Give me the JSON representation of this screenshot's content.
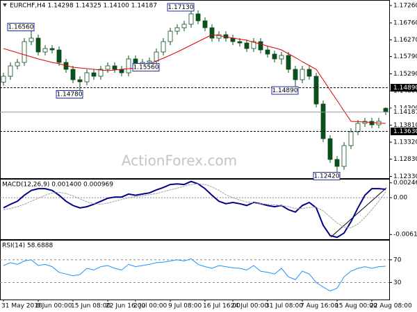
{
  "chart_data": [
    {
      "type": "candlestick",
      "title": "EURCHF,H4 1.14298 1.14325 1.14100 1.14187",
      "watermark": "ActionForex.com",
      "categories": [
        "31 May 2018",
        null,
        null,
        null,
        null,
        "8 Jun 00:00",
        null,
        null,
        null,
        null,
        "15 Jun 08:00",
        null,
        null,
        null,
        null,
        "22 Jun 16:00",
        null,
        null,
        null,
        "2 Jul 00:00",
        null,
        null,
        null,
        null,
        "9 Jul 08:00",
        null,
        null,
        null,
        null,
        "16 Jul 16:00",
        null,
        null,
        null,
        "24 Jul 00:00",
        null,
        null,
        null,
        null,
        "31 Jul 08:00",
        null,
        null,
        null,
        null,
        "7 Aug 16:00",
        null,
        null,
        null,
        null,
        "15 Aug 00:00",
        null,
        null,
        null,
        null,
        "22 Aug 08:00",
        null,
        null
      ],
      "open": [
        1.1505,
        1.1522,
        1.1552,
        1.1562,
        1.1622,
        1.1632,
        1.1592,
        1.1602,
        1.1598,
        1.1562,
        1.1542,
        1.1512,
        1.1506,
        1.1532,
        1.1522,
        1.1542,
        1.1552,
        1.1542,
        1.1532,
        1.1572,
        1.1552,
        1.1562,
        1.1566,
        1.1592,
        1.1622,
        1.1652,
        1.1662,
        1.1672,
        1.1702,
        1.1682,
        1.1662,
        1.1632,
        1.1642,
        1.1632,
        1.1622,
        1.1618,
        1.1602,
        1.1622,
        1.1598,
        1.1586,
        1.1572,
        1.1582,
        1.1542,
        1.1512,
        1.1542,
        1.1522,
        1.1442,
        1.1342,
        1.1282,
        1.1262,
        1.1322,
        1.1362,
        1.1386,
        1.1392,
        1.1382,
        1.14298
      ],
      "high": [
        1.1532,
        1.1562,
        1.1572,
        1.1632,
        1.1656,
        1.1642,
        1.1612,
        1.1612,
        1.1608,
        1.1572,
        1.1552,
        1.1522,
        1.1542,
        1.1542,
        1.1552,
        1.1562,
        1.1562,
        1.1552,
        1.1582,
        1.1582,
        1.1572,
        1.1576,
        1.1602,
        1.1632,
        1.1662,
        1.1672,
        1.1682,
        1.1713,
        1.1712,
        1.1692,
        1.1672,
        1.1652,
        1.1652,
        1.1642,
        1.1632,
        1.1628,
        1.1632,
        1.1632,
        1.1608,
        1.1596,
        1.1592,
        1.1592,
        1.1552,
        1.1552,
        1.1552,
        1.1532,
        1.1452,
        1.1352,
        1.1292,
        1.1332,
        1.1372,
        1.1396,
        1.1402,
        1.1402,
        1.1402,
        1.14325
      ],
      "low": [
        1.1495,
        1.1512,
        1.1542,
        1.1552,
        1.1612,
        1.1582,
        1.1582,
        1.1588,
        1.1552,
        1.1532,
        1.1502,
        1.1478,
        1.1496,
        1.1512,
        1.1512,
        1.1532,
        1.1532,
        1.1522,
        1.1522,
        1.1542,
        1.1542,
        1.1552,
        1.1556,
        1.1582,
        1.1612,
        1.1642,
        1.1652,
        1.1662,
        1.1672,
        1.1652,
        1.1622,
        1.1622,
        1.1622,
        1.1612,
        1.1608,
        1.1592,
        1.1592,
        1.1588,
        1.1576,
        1.1562,
        1.1556,
        1.1532,
        1.1489,
        1.1502,
        1.1512,
        1.1432,
        1.1332,
        1.1272,
        1.1242,
        1.1252,
        1.1312,
        1.1352,
        1.1376,
        1.1372,
        1.1372,
        1.141
      ],
      "close": [
        1.1522,
        1.1552,
        1.1562,
        1.1622,
        1.1632,
        1.1592,
        1.1602,
        1.1598,
        1.1562,
        1.1542,
        1.1512,
        1.1506,
        1.1532,
        1.1522,
        1.1542,
        1.1552,
        1.1542,
        1.1532,
        1.1572,
        1.1552,
        1.1562,
        1.1566,
        1.1592,
        1.1622,
        1.1652,
        1.1662,
        1.1672,
        1.1702,
        1.1682,
        1.1662,
        1.1632,
        1.1642,
        1.1632,
        1.1622,
        1.1618,
        1.1602,
        1.1622,
        1.1598,
        1.1586,
        1.1572,
        1.1582,
        1.1542,
        1.1512,
        1.1542,
        1.1522,
        1.1442,
        1.1342,
        1.1282,
        1.1262,
        1.1322,
        1.1362,
        1.1386,
        1.1392,
        1.1382,
        1.1392,
        1.14187
      ],
      "candle_color": "#0b4f1c",
      "up_fill": "#ffffff",
      "series": [
        {
          "color": "#e00000",
          "values": [
            1.1602,
            1.1596,
            1.159,
            1.1584,
            1.1578,
            1.1572,
            1.1567,
            1.1562,
            1.1558,
            1.1553,
            1.1548,
            1.1546,
            1.1544,
            1.1542,
            1.154,
            1.1538,
            1.154,
            1.1542,
            1.1544,
            1.1546,
            1.1548,
            1.1557,
            1.1566,
            1.1574,
            1.1583,
            1.1592,
            1.1602,
            1.1612,
            1.1622,
            1.1632,
            1.1642,
            1.1639,
            1.1636,
            1.1632,
            1.1629,
            1.1626,
            1.162,
            1.1615,
            1.1609,
            1.1604,
            1.1598,
            1.1587,
            1.1576,
            1.1564,
            1.1553,
            1.1542,
            1.1512,
            1.1482,
            1.1452,
            1.1422,
            1.1392,
            1.1391,
            1.139,
            1.1389,
            1.1387,
            1.1386
          ]
        }
      ],
      "ylim": [
        1.1228,
        1.1738
      ],
      "yticks": [
        {
          "value": 1.1726,
          "label": "1.17260"
        },
        {
          "value": 1.1676,
          "label": "1.16760"
        },
        {
          "value": 1.1627,
          "label": "1.16270"
        },
        {
          "value": 1.1579,
          "label": "1.15790"
        },
        {
          "value": 1.1529,
          "label": "1.15290"
        },
        {
          "value": 1.148,
          "label": "1.14800"
        },
        {
          "value": 1.143,
          "label": "1.14300"
        },
        {
          "value": 1.1381,
          "label": "1.13810"
        },
        {
          "value": 1.1332,
          "label": "1.13320"
        },
        {
          "value": 1.1283,
          "label": "1.12830"
        },
        {
          "value": 1.1233,
          "label": "1.12330"
        }
      ],
      "levels": [
        {
          "value": 1.1489,
          "label": "1.14890",
          "style": "dashed"
        },
        {
          "value": 1.14187,
          "label": "1.14187",
          "style": "current"
        },
        {
          "value": 1.1363,
          "label": "1.13630",
          "style": "dashed"
        }
      ],
      "annotations": [
        {
          "value": 1.1656,
          "label": "1.16560"
        },
        {
          "value": 1.1478,
          "label": "1.14780"
        },
        {
          "value": 1.1713,
          "label": "1.17130"
        },
        {
          "value": 1.1556,
          "label": "1.15560"
        },
        {
          "value": 1.1489,
          "label": "1.14890"
        },
        {
          "value": 1.1242,
          "label": "1.12420"
        }
      ]
    },
    {
      "type": "macd",
      "title": "MACD(12,26,9) 0.001400 0.000969",
      "zero_line": true,
      "series": [
        {
          "color": "#00008b",
          "values": [
            -0.0017,
            -0.0011,
            -0.0006,
            0.0004,
            0.0012,
            0.0015,
            0.0015,
            0.0012,
            0.0004,
            -0.0006,
            -0.0013,
            -0.0017,
            -0.0015,
            -0.0011,
            -0.0006,
            -0.0001,
            0.0001,
            0.0001,
            0.0006,
            0.0004,
            0.0006,
            0.0008,
            0.0013,
            0.0017,
            0.0022,
            0.0023,
            0.0022,
            0.0027,
            0.0023,
            0.0015,
            0.0004,
            -0.0006,
            -0.001,
            -0.0008,
            -0.001,
            -0.0013,
            -0.0008,
            -0.001,
            -0.0013,
            -0.0015,
            -0.0013,
            -0.002,
            -0.0024,
            -0.0013,
            -0.0008,
            -0.0017,
            -0.0046,
            -0.0063,
            -0.0066,
            -0.0059,
            -0.004,
            -0.0017,
            0.0004,
            0.0015,
            0.0015,
            0.0014
          ]
        },
        {
          "color": "#a0a0a0",
          "values": [
            -0.002,
            -0.0018,
            -0.0015,
            -0.0011,
            -0.0006,
            -0.0001,
            0.0004,
            0.0008,
            0.0009,
            0.0007,
            0.0003,
            -0.0002,
            -0.0007,
            -0.001,
            -0.0011,
            -0.0009,
            -0.0006,
            -0.0003,
            0,
            0.0002,
            0.0003,
            0.0005,
            0.0007,
            0.001,
            0.0013,
            0.0016,
            0.0019,
            0.0022,
            0.0023,
            0.0022,
            0.0018,
            0.0012,
            0.0005,
            0,
            -0.0004,
            -0.0007,
            -0.0009,
            -0.001,
            -0.0011,
            -0.0012,
            -0.0013,
            -0.0015,
            -0.0018,
            -0.0018,
            -0.0016,
            -0.0016,
            -0.0022,
            -0.0032,
            -0.0042,
            -0.0049,
            -0.005,
            -0.0044,
            -0.0033,
            -0.002,
            -0.0006,
            0.000969
          ]
        }
      ],
      "ylim": [
        -0.0068,
        0.0029
      ],
      "yticks": [
        0.002469,
        {
          "value": 0,
          "label": "0.00"
        },
        -0.006136
      ]
    },
    {
      "type": "rsi",
      "title": "RSI(14) 58.6888",
      "grid": true,
      "series": [
        {
          "color": "#1e90ff",
          "values": [
            60,
            65,
            62,
            68,
            70,
            60,
            62,
            58,
            48,
            45,
            42,
            44,
            55,
            52,
            58,
            60,
            55,
            52,
            62,
            58,
            60,
            62,
            65,
            66,
            68,
            70,
            68,
            72,
            62,
            58,
            55,
            60,
            58,
            56,
            55,
            52,
            60,
            50,
            48,
            45,
            55,
            40,
            35,
            50,
            45,
            30,
            22,
            15,
            20,
            40,
            50,
            55,
            58,
            55,
            58,
            58.6888
          ]
        }
      ],
      "ylim": [
        0,
        104
      ],
      "yticks": [
        30,
        70
      ]
    }
  ]
}
